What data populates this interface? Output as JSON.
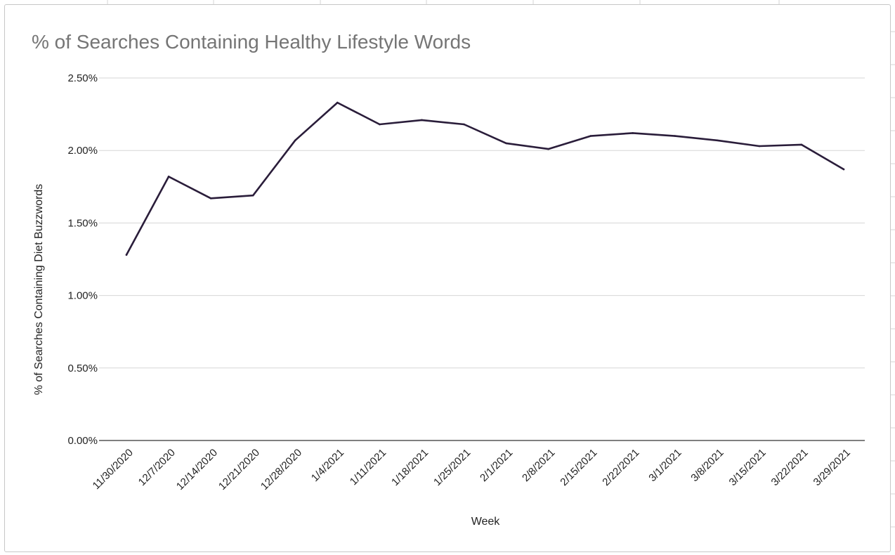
{
  "chart_data": {
    "type": "line",
    "title": "% of Searches Containing Healthy Lifestyle Words",
    "xlabel": "Week",
    "ylabel": "% of Searches Containing Diet Buzzwords",
    "categories": [
      "11/30/2020",
      "12/7/2020",
      "12/14/2020",
      "12/21/2020",
      "12/28/2020",
      "1/4/2021",
      "1/11/2021",
      "1/18/2021",
      "1/25/2021",
      "2/1/2021",
      "2/8/2021",
      "2/15/2021",
      "2/22/2021",
      "3/1/2021",
      "3/8/2021",
      "3/15/2021",
      "3/22/2021",
      "3/29/2021"
    ],
    "series": [
      {
        "values": [
          1.28,
          1.82,
          1.67,
          1.69,
          2.07,
          2.33,
          2.18,
          2.21,
          2.18,
          2.05,
          2.01,
          2.1,
          2.12,
          2.1,
          2.07,
          2.03,
          2.04,
          1.87
        ],
        "color": "#2a1d3a"
      }
    ],
    "yticks": [
      "0.00%",
      "0.50%",
      "1.00%",
      "1.50%",
      "2.00%",
      "2.50%"
    ],
    "ylim": [
      0,
      2.5
    ],
    "grid": true,
    "legend": "none"
  }
}
